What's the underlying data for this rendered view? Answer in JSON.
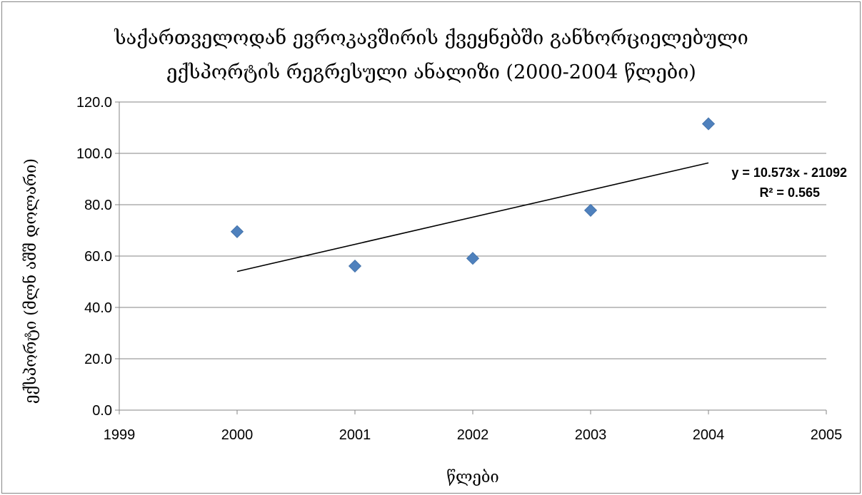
{
  "chart_data": {
    "type": "scatter",
    "title_lines": [
      "საქართველოდან ევროკავშირის ქვეყნებში განხორციელებული",
      "ექსპორტის რეგრესული ანალიზი (2000-2004 წლები)"
    ],
    "xlabel": "წლები",
    "ylabel": "ექსპორტი (მლნ აშშ დოლარი)",
    "xlim": [
      1999,
      2005
    ],
    "ylim": [
      0,
      120
    ],
    "x_ticks": [
      1999,
      2000,
      2001,
      2002,
      2003,
      2004,
      2005
    ],
    "x_tick_labels": [
      "1999",
      "2000",
      "2001",
      "2002",
      "2003",
      "2004",
      "2005"
    ],
    "y_ticks": [
      0,
      20,
      40,
      60,
      80,
      100,
      120
    ],
    "y_tick_labels": [
      "0.0",
      "20.0",
      "40.0",
      "60.0",
      "80.0",
      "100.0",
      "120.0"
    ],
    "grid": true,
    "series": [
      {
        "x": [
          2000,
          2001,
          2002,
          2003,
          2004
        ],
        "y": [
          69.5,
          56.1,
          59.1,
          77.8,
          111.5
        ],
        "color": "#4f81bd",
        "marker": "diamond"
      }
    ],
    "trendline": {
      "type": "linear",
      "slope": 10.573,
      "intercept": -21092,
      "x_range": [
        2000,
        2004
      ],
      "color": "#000000",
      "equation_label": "y = 10.573x - 21092",
      "r2_label": "R² = 0.565"
    }
  }
}
